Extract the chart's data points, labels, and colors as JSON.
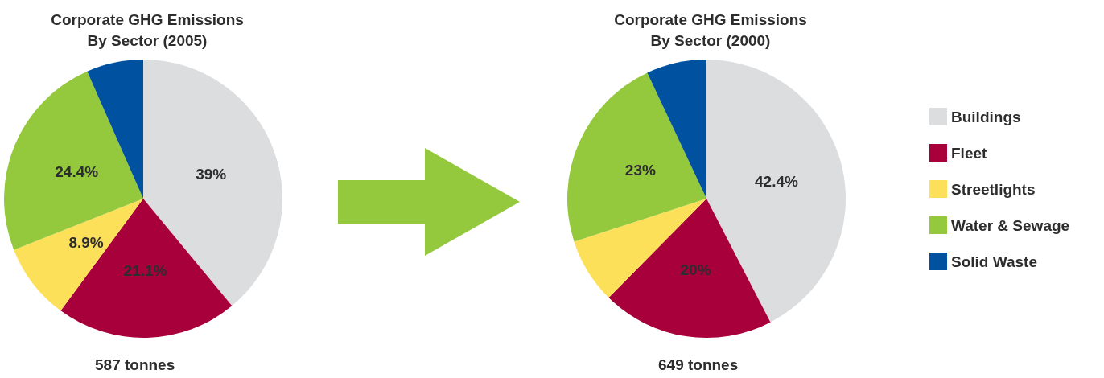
{
  "chart_data": [
    {
      "type": "pie",
      "title": "Corporate GHG Emissions\nBy Sector (2005)",
      "categories": [
        null,
        null,
        null,
        null,
        null
      ],
      "values": [
        39,
        21.1,
        8.9,
        24.4,
        6.6
      ],
      "value_labels": [
        "39%",
        "21.1%",
        "8.9%",
        "24.4%",
        null
      ],
      "colors": [
        "#dcdddf",
        "#a8003b",
        "#fde05a",
        "#94c83d",
        "#0052a0"
      ],
      "annotations": [
        "587 tonnes"
      ],
      "legend": false
    },
    {
      "type": "pie",
      "title": "Corporate GHG Emissions\nBy Sector (2000)",
      "categories": [
        "Buildings",
        "Fleet",
        "Streetlights",
        "Water & Sewage",
        "Solid Waste"
      ],
      "values": [
        42.4,
        20,
        7.6,
        23,
        7.0
      ],
      "value_labels": [
        "42.4%",
        "20%",
        null,
        "23%",
        null
      ],
      "colors": [
        "#dcdddf",
        "#a8003b",
        "#fde05a",
        "#94c83d",
        "#0052a0"
      ],
      "annotations": [
        "649 tonnes"
      ],
      "legend": "right"
    }
  ]
}
